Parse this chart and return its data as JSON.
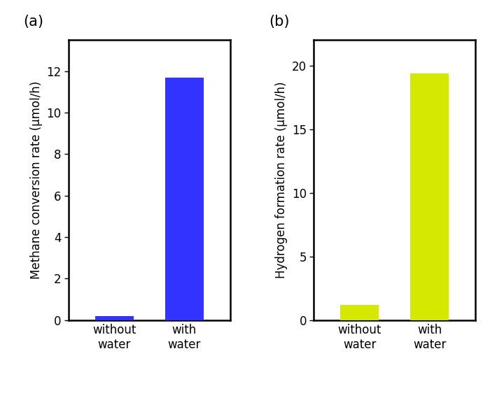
{
  "panel_a": {
    "label": "(a)",
    "categories": [
      "without\nwater",
      "with\nwater"
    ],
    "values": [
      0.2,
      11.7
    ],
    "bar_color": "#3333ff",
    "ylabel": "Methane conversion rate (μmol/h)",
    "ylim": [
      0,
      13.5
    ],
    "yticks": [
      0,
      2,
      4,
      6,
      8,
      10,
      12
    ]
  },
  "panel_b": {
    "label": "(b)",
    "categories": [
      "without\nwater",
      "with\nwater"
    ],
    "values": [
      1.2,
      19.4
    ],
    "bar_color": "#d4e800",
    "ylabel": "Hydrogen formation rate (μmol/h)",
    "ylim": [
      0,
      22
    ],
    "yticks": [
      0,
      5,
      10,
      15,
      20
    ]
  },
  "bar_width": 0.55,
  "tick_fontsize": 12,
  "label_fontsize": 12,
  "panel_label_fontsize": 15,
  "background_color": "#ffffff",
  "spine_linewidth": 1.8
}
